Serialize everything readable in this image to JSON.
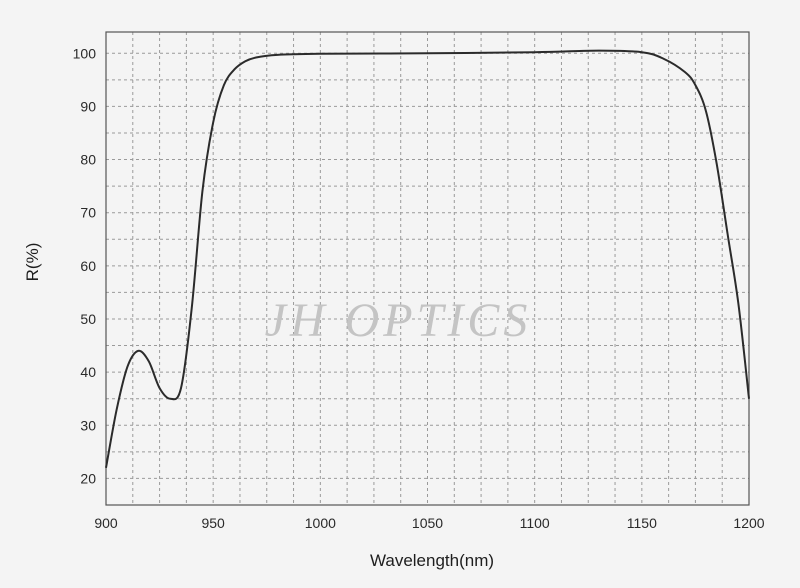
{
  "chart_data": {
    "type": "line",
    "title": "",
    "xlabel": "Wavelength(nm)",
    "ylabel": "R(%)",
    "xlim": [
      900,
      1200
    ],
    "ylim": [
      15,
      104
    ],
    "x_ticks": [
      900,
      950,
      1000,
      1050,
      1100,
      1150,
      1200
    ],
    "y_ticks": [
      20,
      30,
      40,
      50,
      60,
      70,
      80,
      90,
      100
    ],
    "grid": true,
    "grid_style": "dashed",
    "watermark": "JH OPTICS",
    "line_color": "#2b2b2b",
    "series": [
      {
        "x": [
          900,
          905,
          910,
          915,
          920,
          925,
          930,
          935,
          940,
          945,
          950,
          955,
          960,
          965,
          970,
          980,
          1000,
          1050,
          1100,
          1130,
          1150,
          1160,
          1170,
          1175,
          1180,
          1185,
          1190,
          1195,
          1200
        ],
        "y": [
          22,
          33,
          41,
          44,
          42,
          37,
          35,
          37,
          52,
          74,
          87,
          94,
          97,
          98.5,
          99.2,
          99.7,
          99.9,
          100,
          100.2,
          100.5,
          100.2,
          99,
          96.5,
          94,
          89,
          79,
          66,
          53,
          35
        ]
      }
    ]
  }
}
